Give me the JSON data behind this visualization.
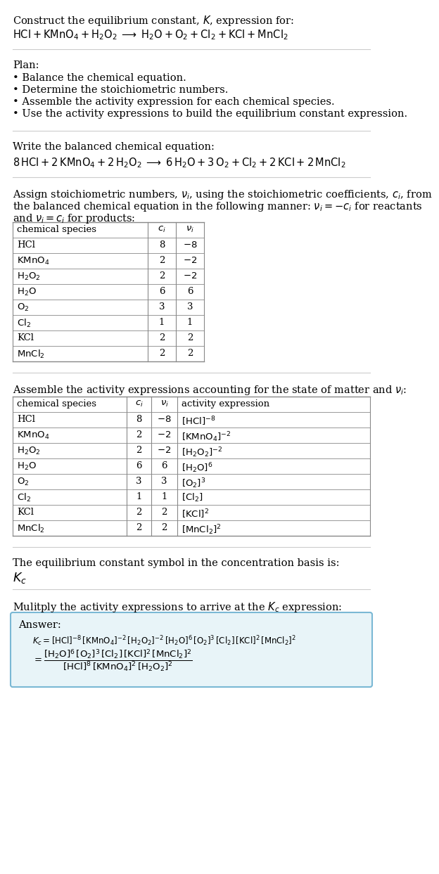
{
  "title_line1": "Construct the equilibrium constant, $K$, expression for:",
  "title_line2_plain": "HCl + KMnO",
  "title_line2": "$\\mathrm{HCl} + \\mathrm{KMnO_4} + \\mathrm{H_2O_2} \\;\\longrightarrow\\; \\mathrm{H_2O} + \\mathrm{O_2} + \\mathrm{Cl_2} + \\mathrm{KCl} + \\mathrm{MnCl_2}$",
  "plan_header": "Plan:",
  "plan_items": [
    "\\u2022 Balance the chemical equation.",
    "\\u2022 Determine the stoichiometric numbers.",
    "\\u2022 Assemble the activity expression for each chemical species.",
    "\\u2022 Use the activity expressions to build the equilibrium constant expression."
  ],
  "balanced_header": "Write the balanced chemical equation:",
  "balanced_eq": "$8\\,\\mathrm{HCl} + 2\\,\\mathrm{KMnO_4} + 2\\,\\mathrm{H_2O_2} \\;\\longrightarrow\\; 6\\,\\mathrm{H_2O} + 3\\,\\mathrm{O_2} + \\mathrm{Cl_2} + 2\\,\\mathrm{KCl} + 2\\,\\mathrm{MnCl_2}$",
  "stoich_intro1": "Assign stoichiometric numbers, $\\nu_i$, using the stoichiometric coefficients, $c_i$, from",
  "stoich_intro2": "the balanced chemical equation in the following manner: $\\nu_i = -c_i$ for reactants",
  "stoich_intro3": "and $\\nu_i = c_i$ for products:",
  "table1_headers": [
    "chemical species",
    "$c_i$",
    "$\\nu_i$"
  ],
  "table1_data": [
    [
      "HCl",
      "8",
      "$-8$"
    ],
    [
      "$\\mathrm{KMnO_4}$",
      "2",
      "$-2$"
    ],
    [
      "$\\mathrm{H_2O_2}$",
      "2",
      "$-2$"
    ],
    [
      "$\\mathrm{H_2O}$",
      "6",
      "6"
    ],
    [
      "$\\mathrm{O_2}$",
      "3",
      "3"
    ],
    [
      "$\\mathrm{Cl_2}$",
      "1",
      "1"
    ],
    [
      "KCl",
      "2",
      "2"
    ],
    [
      "$\\mathrm{MnCl_2}$",
      "2",
      "2"
    ]
  ],
  "activity_intro": "Assemble the activity expressions accounting for the state of matter and $\\nu_i$:",
  "table2_headers": [
    "chemical species",
    "$c_i$",
    "$\\nu_i$",
    "activity expression"
  ],
  "table2_data": [
    [
      "HCl",
      "8",
      "$-8$",
      "$[\\mathrm{HCl}]^{-8}$"
    ],
    [
      "$\\mathrm{KMnO_4}$",
      "2",
      "$-2$",
      "$[\\mathrm{KMnO_4}]^{-2}$"
    ],
    [
      "$\\mathrm{H_2O_2}$",
      "2",
      "$-2$",
      "$[\\mathrm{H_2O_2}]^{-2}$"
    ],
    [
      "$\\mathrm{H_2O}$",
      "6",
      "6",
      "$[\\mathrm{H_2O}]^{6}$"
    ],
    [
      "$\\mathrm{O_2}$",
      "3",
      "3",
      "$[\\mathrm{O_2}]^{3}$"
    ],
    [
      "$\\mathrm{Cl_2}$",
      "1",
      "1",
      "$[\\mathrm{Cl_2}]$"
    ],
    [
      "KCl",
      "2",
      "2",
      "$[\\mathrm{KCl}]^{2}$"
    ],
    [
      "$\\mathrm{MnCl_2}$",
      "2",
      "2",
      "$[\\mathrm{MnCl_2}]^{2}$"
    ]
  ],
  "kc_symbol_text": "The equilibrium constant symbol in the concentration basis is:",
  "kc_symbol": "$K_c$",
  "multiply_text": "Mulitply the activity expressions to arrive at the $K_c$ expression:",
  "answer_label": "Answer:",
  "answer_line1": "$K_c = [\\mathrm{HCl}]^{-8}\\,[\\mathrm{KMnO_4}]^{-2}\\,[\\mathrm{H_2O_2}]^{-2}\\,[\\mathrm{H_2O}]^{6}\\,[\\mathrm{O_2}]^{3}\\,[\\mathrm{Cl_2}]\\,[\\mathrm{KCl}]^{2}\\,[\\mathrm{MnCl_2}]^{2}$",
  "answer_eq": "$= \\dfrac{[\\mathrm{H_2O}]^{6}\\,[\\mathrm{O_2}]^{3}\\,[\\mathrm{Cl_2}]\\,[\\mathrm{KCl}]^{2}\\,[\\mathrm{MnCl_2}]^{2}}{[\\mathrm{HCl}]^{8}\\,[\\mathrm{KMnO_4}]^{2}\\,[\\mathrm{H_2O_2}]^{2}}$",
  "bg_color": "#ffffff",
  "answer_box_facecolor": "#e8f4f8",
  "answer_box_edgecolor": "#7ab8d4",
  "separator_color": "#cccccc",
  "text_color": "#000000",
  "table_border_color": "#888888"
}
